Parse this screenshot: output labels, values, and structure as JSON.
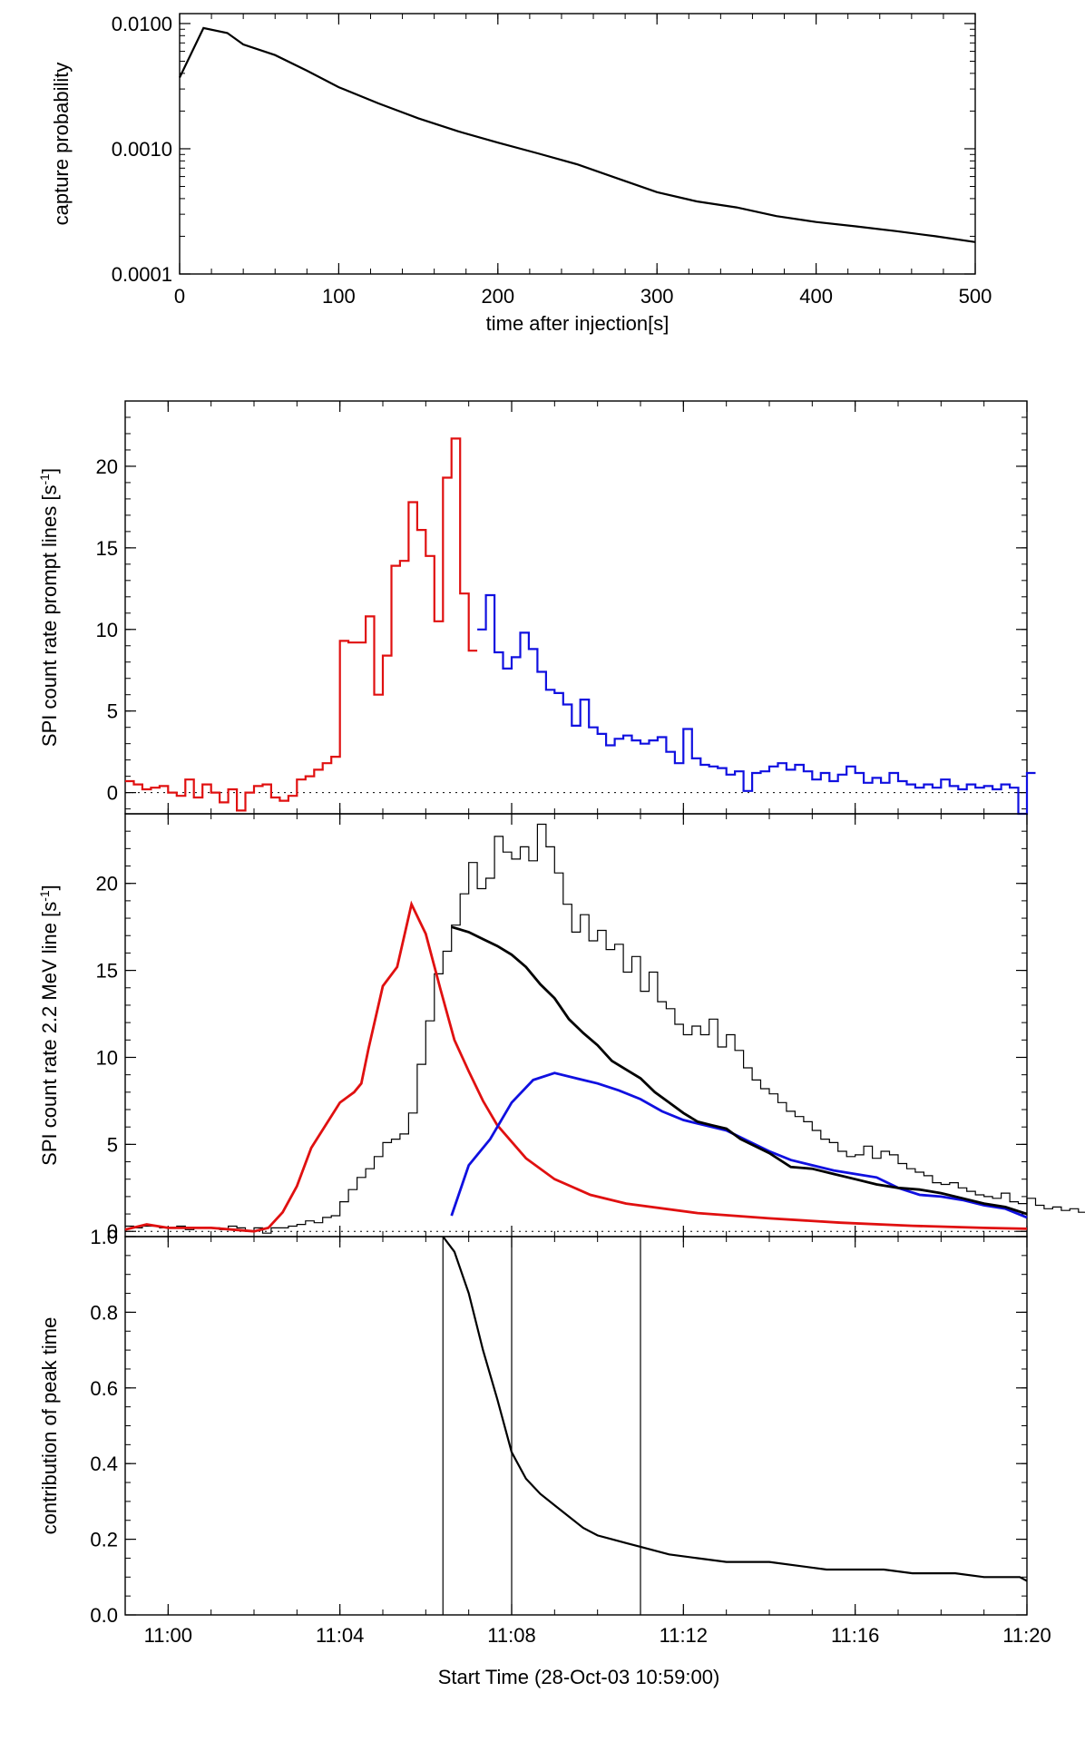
{
  "figure": {
    "xlabel_text": "Start Time (28-Oct-03 10:59:00)"
  },
  "chart_data": [
    {
      "id": "capture",
      "type": "line",
      "xlabel": "time after injection[s]",
      "ylabel": "capture probability",
      "xlim": [
        0,
        500
      ],
      "ylim": [
        0.0001,
        0.012
      ],
      "yscale": "log",
      "xticks": [
        "0",
        "100",
        "200",
        "300",
        "400",
        "500"
      ],
      "yticks": [
        "0.0001",
        "0.0010",
        "0.0100"
      ],
      "series": [
        {
          "color": "#000000",
          "x": [
            0,
            15,
            30,
            40,
            60,
            80,
            100,
            125,
            150,
            175,
            200,
            225,
            250,
            275,
            300,
            325,
            350,
            375,
            400,
            425,
            450,
            475,
            500
          ],
          "y": [
            0.0037,
            0.0092,
            0.0084,
            0.0068,
            0.0056,
            0.0042,
            0.0031,
            0.0023,
            0.00175,
            0.00138,
            0.00112,
            0.00092,
            0.00075,
            0.00058,
            0.00045,
            0.00038,
            0.00034,
            0.00029,
            0.00026,
            0.00024,
            0.00022,
            0.0002,
            0.00018
          ]
        }
      ]
    },
    {
      "id": "prompt",
      "type": "line",
      "step": true,
      "ylabel": "SPI count rate prompt lines [s",
      "ylabel_sup": "-1",
      "ylabel_close": "]",
      "xlim": [
        0,
        1260
      ],
      "ylim": [
        -1.3,
        24
      ],
      "yticks": [
        "0",
        "5",
        "10",
        "15",
        "20"
      ],
      "zero_line": true,
      "bin_width": 12,
      "series": [
        {
          "color": "#e01010",
          "x0": 0,
          "values": [
            0.7,
            0.5,
            0.2,
            0.3,
            0.4,
            0,
            -0.2,
            0.8,
            -0.3,
            0.5,
            0,
            -0.6,
            0.2,
            -1.1,
            0,
            0.4,
            0.5,
            -0.3,
            -0.5,
            -0.2,
            0.8,
            1.0,
            1.4,
            1.8,
            2.2,
            9.3,
            9.2,
            9.2,
            10.8,
            6.0,
            8.4,
            13.9,
            14.2,
            17.8,
            16.1,
            14.5,
            10.5,
            19.3,
            21.7,
            12.2,
            8.7
          ]
        },
        {
          "color": "#1010e0",
          "x0": 492,
          "values": [
            10.0,
            12.1,
            8.6,
            7.6,
            8.3,
            9.8,
            8.8,
            7.4,
            6.3,
            6.1,
            5.4,
            4.1,
            5.7,
            4.0,
            3.6,
            2.9,
            3.3,
            3.5,
            3.2,
            3.0,
            3.2,
            3.4,
            2.5,
            1.8,
            3.9,
            2.1,
            1.7,
            1.6,
            1.5,
            1.1,
            1.3,
            0.1,
            1.2,
            1.3,
            1.6,
            1.8,
            1.4,
            1.7,
            1.3,
            0.8,
            1.2,
            0.7,
            1.1,
            1.6,
            1.2,
            0.6,
            0.9,
            0.6,
            1.2,
            0.7,
            0.5,
            0.3,
            0.5,
            0.3,
            0.8,
            0.4,
            0.2,
            0.5,
            0.3,
            0.4,
            0.2,
            0.5,
            0.3,
            -1.3,
            1.2
          ]
        }
      ]
    },
    {
      "id": "line22",
      "type": "line",
      "ylabel": "SPI count rate 2.2 MeV line [s",
      "ylabel_sup": "-1",
      "ylabel_close": "]",
      "xlim": [
        0,
        1260
      ],
      "ylim": [
        -0.3,
        24
      ],
      "yticks": [
        "0",
        "5",
        "10",
        "15",
        "20"
      ],
      "zero_line": true,
      "histogram": {
        "color": "#000000",
        "x0": 0,
        "bin_width": 12,
        "values": [
          0.3,
          0.2,
          0.3,
          0.3,
          0.2,
          0.2,
          0.3,
          0.1,
          0.2,
          0.2,
          0.2,
          0.1,
          0.3,
          0.2,
          0,
          0.2,
          -0.1,
          0.2,
          0.2,
          0.3,
          0.4,
          0.6,
          0.5,
          0.8,
          0.9,
          1.7,
          2.4,
          3.1,
          3.6,
          4.3,
          5.1,
          5.3,
          5.6,
          6.8,
          9.6,
          12.1,
          14.8,
          16.1,
          17.6,
          19.4,
          21.2,
          19.7,
          20.3,
          22.7,
          21.8,
          21.4,
          22.1,
          21.3,
          23.4,
          22.1,
          20.6,
          18.8,
          17.2,
          18.2,
          16.7,
          17.3,
          16.2,
          16.5,
          14.9,
          15.8,
          13.8,
          14.9,
          13.2,
          12.8,
          11.9,
          11.3,
          11.8,
          11.3,
          12.2,
          10.6,
          11.3,
          10.4,
          9.4,
          8.7,
          8.2,
          7.9,
          7.4,
          6.9,
          6.6,
          6.3,
          5.8,
          5.3,
          5.1,
          4.6,
          4.3,
          4.4,
          4.9,
          4.2,
          4.6,
          4.4,
          3.9,
          3.6,
          3.4,
          3.2,
          2.8,
          2.7,
          2.8,
          2.5,
          2.3,
          2.1,
          2.0,
          1.9,
          2.2,
          1.7,
          1.6,
          1.9,
          1.5,
          1.3,
          1.4,
          1.2,
          1.3,
          1.1,
          1.1,
          1.3,
          0.8
        ]
      },
      "series": [
        {
          "color": "#e01010",
          "x": [
            0,
            30,
            60,
            90,
            120,
            150,
            180,
            200,
            220,
            240,
            260,
            280,
            300,
            320,
            330,
            340,
            360,
            380,
            400,
            420,
            440,
            460,
            480,
            500,
            520,
            560,
            600,
            650,
            700,
            800,
            900,
            1000,
            1100,
            1200,
            1260
          ],
          "y": [
            0.1,
            0.4,
            0.2,
            0.2,
            0.2,
            0.1,
            0.0,
            0.2,
            1.1,
            2.6,
            4.8,
            6.1,
            7.4,
            8.0,
            8.5,
            10.5,
            14.1,
            15.2,
            18.8,
            17.1,
            14.0,
            11.0,
            9.2,
            7.5,
            6.1,
            4.2,
            3.0,
            2.1,
            1.6,
            1.05,
            0.75,
            0.5,
            0.32,
            0.2,
            0.15
          ]
        },
        {
          "color": "#1010e0",
          "x": [
            456,
            480,
            510,
            540,
            570,
            600,
            630,
            660,
            690,
            720,
            750,
            780,
            810,
            840,
            870,
            900,
            930,
            960,
            990,
            1020,
            1050,
            1080,
            1110,
            1140,
            1170,
            1200,
            1230,
            1260
          ],
          "y": [
            0.9,
            3.8,
            5.3,
            7.4,
            8.7,
            9.1,
            8.8,
            8.5,
            8.1,
            7.6,
            6.9,
            6.4,
            6.1,
            5.8,
            5.2,
            4.6,
            4.1,
            3.8,
            3.5,
            3.3,
            3.1,
            2.5,
            2.1,
            2.0,
            1.8,
            1.5,
            1.3,
            0.8
          ]
        },
        {
          "color": "#000000",
          "x": [
            456,
            480,
            500,
            520,
            540,
            560,
            580,
            600,
            620,
            640,
            660,
            680,
            700,
            720,
            740,
            760,
            780,
            800,
            820,
            840,
            860,
            880,
            900,
            930,
            960,
            990,
            1020,
            1050,
            1080,
            1110,
            1140,
            1170,
            1200,
            1230,
            1260
          ],
          "y": [
            17.5,
            17.2,
            16.8,
            16.4,
            15.9,
            15.2,
            14.2,
            13.4,
            12.2,
            11.4,
            10.7,
            9.8,
            9.3,
            8.8,
            8.0,
            7.4,
            6.8,
            6.3,
            6.1,
            5.9,
            5.3,
            4.9,
            4.5,
            3.7,
            3.6,
            3.3,
            3.0,
            2.7,
            2.5,
            2.4,
            2.2,
            1.9,
            1.6,
            1.4,
            1.0
          ]
        }
      ]
    },
    {
      "id": "contribution",
      "type": "line",
      "ylabel": "contribution of peak time",
      "xlim": [
        0,
        1260
      ],
      "ylim": [
        0.0,
        1.0
      ],
      "yticks": [
        "0.0",
        "0.2",
        "0.4",
        "0.6",
        "0.8",
        "1.0"
      ],
      "xticks": [
        "11:00",
        "11:04",
        "11:08",
        "11:12",
        "11:16",
        "11:20"
      ],
      "xtick_values": [
        60,
        300,
        540,
        780,
        1020,
        1260
      ],
      "vlines": [
        444,
        540,
        720
      ],
      "series": [
        {
          "color": "#000000",
          "x": [
            444,
            460,
            480,
            500,
            520,
            540,
            560,
            580,
            600,
            620,
            640,
            660,
            680,
            700,
            720,
            760,
            800,
            840,
            880,
            900,
            940,
            980,
            1000,
            1020,
            1060,
            1100,
            1120,
            1160,
            1200,
            1240,
            1250,
            1260
          ],
          "y": [
            1.0,
            0.96,
            0.85,
            0.7,
            0.57,
            0.43,
            0.36,
            0.32,
            0.29,
            0.26,
            0.23,
            0.21,
            0.2,
            0.19,
            0.18,
            0.16,
            0.15,
            0.14,
            0.14,
            0.14,
            0.13,
            0.12,
            0.12,
            0.12,
            0.12,
            0.11,
            0.11,
            0.11,
            0.1,
            0.1,
            0.1,
            0.09
          ]
        }
      ]
    }
  ]
}
